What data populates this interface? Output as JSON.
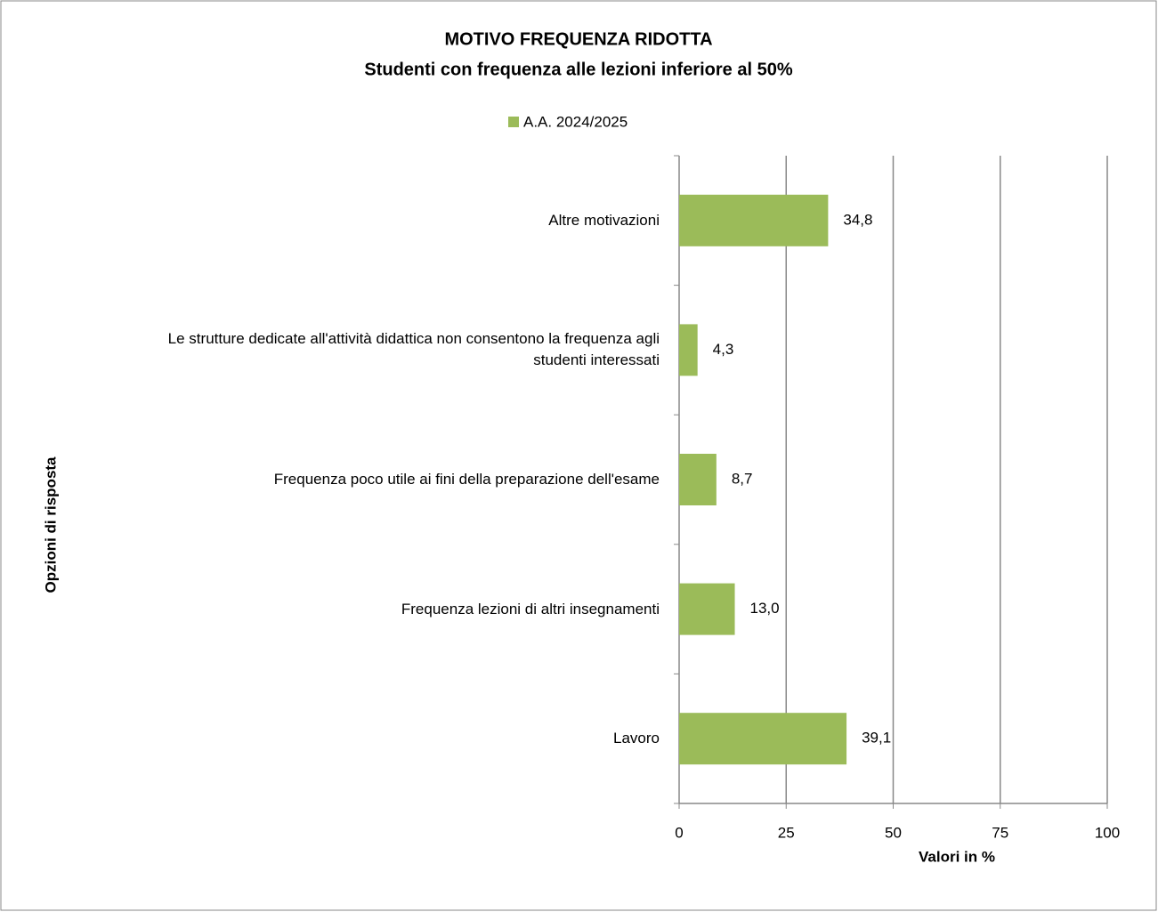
{
  "chart_data": {
    "type": "bar",
    "orientation": "horizontal",
    "title": "MOTIVO FREQUENZA RIDOTTA",
    "subtitle": "Studenti con frequenza alle lezioni  inferiore  al 50%",
    "x_label": "Valori in %",
    "y_label": "Opzioni di risposta",
    "categories": [
      "Altre motivazioni",
      "Le strutture dedicate all'attività didattica non consentono la frequenza agli studenti interessati",
      "Frequenza poco utile ai fini della preparazione dell'esame",
      "Frequenza lezioni di altri insegnamenti",
      "Lavoro"
    ],
    "series": [
      {
        "name": "A.A. 2024/2025",
        "color": "#9bbb59",
        "values": [
          34.8,
          4.3,
          8.7,
          13.0,
          39.1
        ],
        "value_labels": [
          "34,8",
          "4,3",
          "8,7",
          "13,0",
          "39,1"
        ]
      }
    ],
    "xlim": [
      0,
      100
    ],
    "xticks": [
      0,
      25,
      50,
      75,
      100
    ],
    "grid": true,
    "legend": "top"
  }
}
